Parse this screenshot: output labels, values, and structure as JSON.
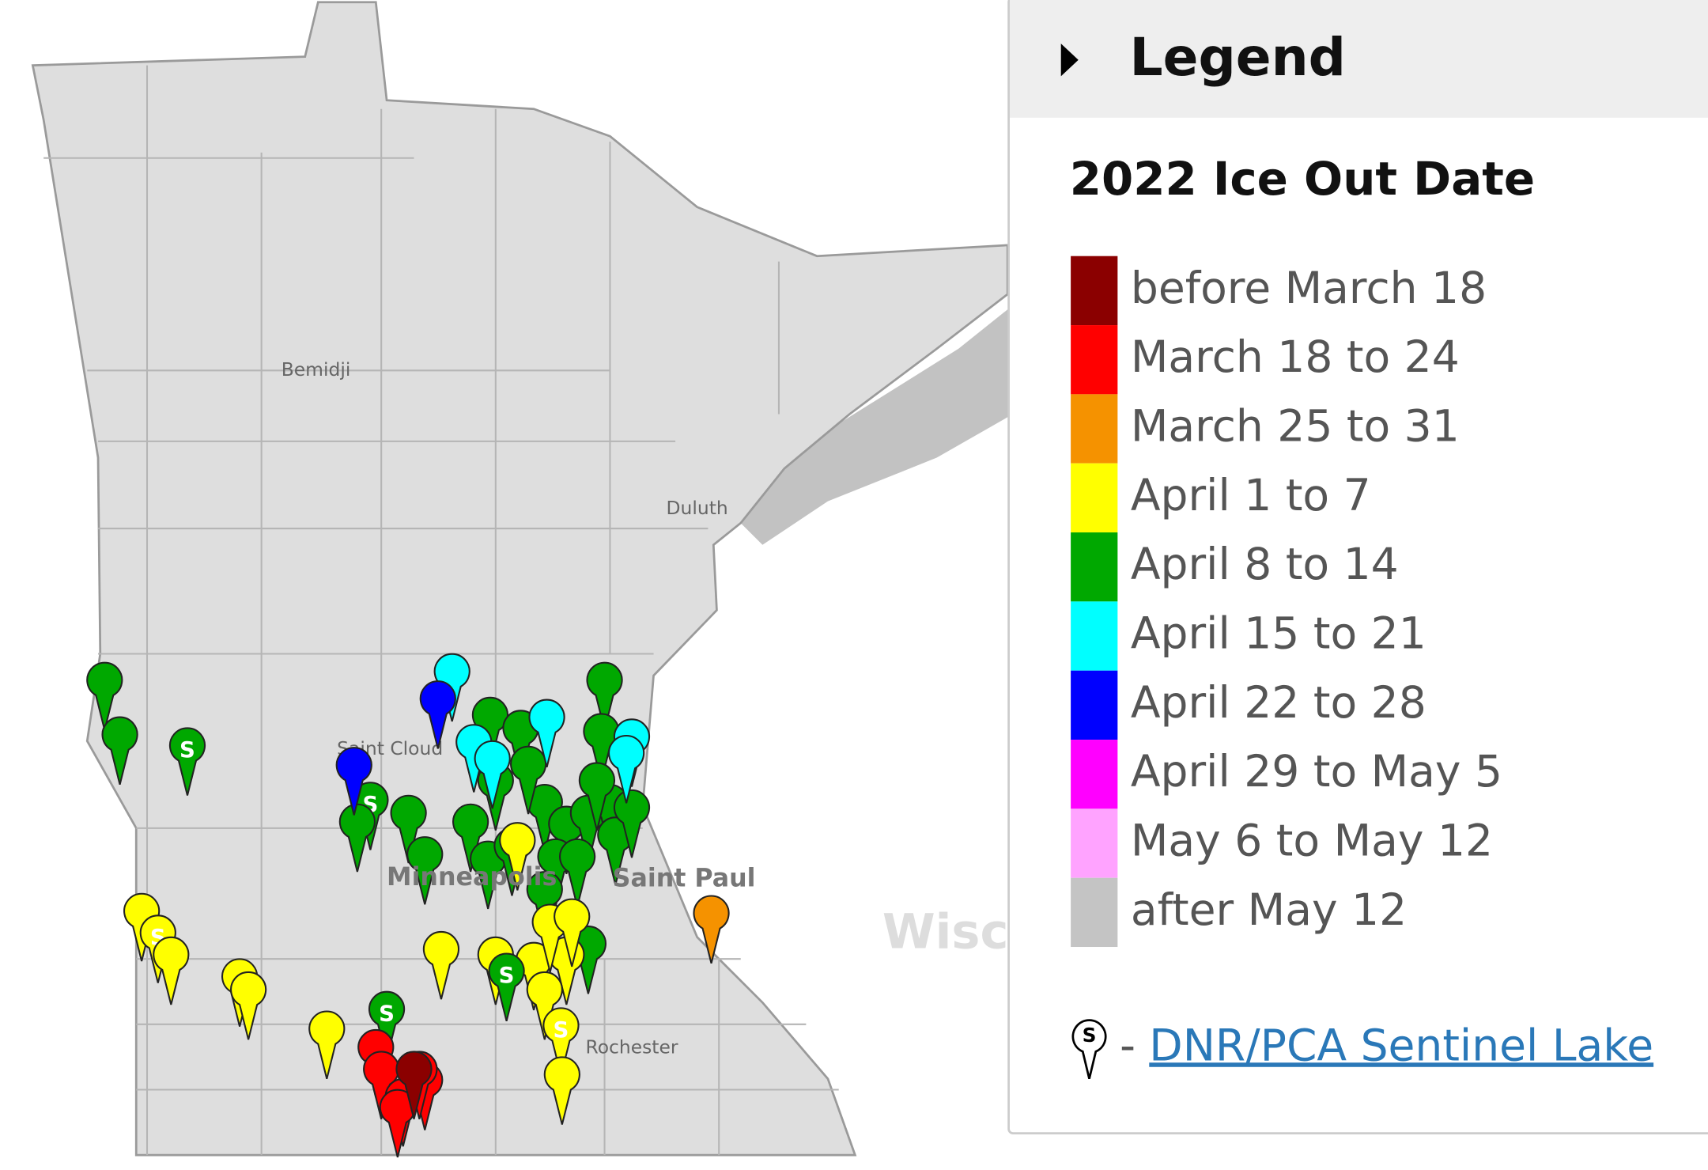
{
  "map": {
    "labels": {
      "bemidji": "Bemidji",
      "duluth": "Duluth",
      "saint_cloud": "Saint Cloud",
      "minneapolis": "Minneapolis",
      "saint_paul": "Saint Paul",
      "rochester": "Rochester",
      "wisconsin": "Wisconsin"
    },
    "sentinel_symbol": "S"
  },
  "legend": {
    "toggle_title": "Legend",
    "title": "2022 Ice Out Date",
    "items": [
      {
        "label": "before March 18",
        "color": "#8b0000"
      },
      {
        "label": "March 18 to 24",
        "color": "#ff0000"
      },
      {
        "label": "March 25 to 31",
        "color": "#f59200"
      },
      {
        "label": "April 1 to 7",
        "color": "#ffff00"
      },
      {
        "label": "April 8 to 14",
        "color": "#00a800"
      },
      {
        "label": "April 15 to 21",
        "color": "#00ffff"
      },
      {
        "label": "April 22 to 28",
        "color": "#0000ff"
      },
      {
        "label": "April 29 to May 5",
        "color": "#ff00ff"
      },
      {
        "label": "May 6 to May 12",
        "color": "#ffa3ff"
      },
      {
        "label": "after May 12",
        "color": "#c4c4c4"
      }
    ],
    "sentinel_dash": "-",
    "sentinel_link": "DNR/PCA Sentinel Lake"
  }
}
